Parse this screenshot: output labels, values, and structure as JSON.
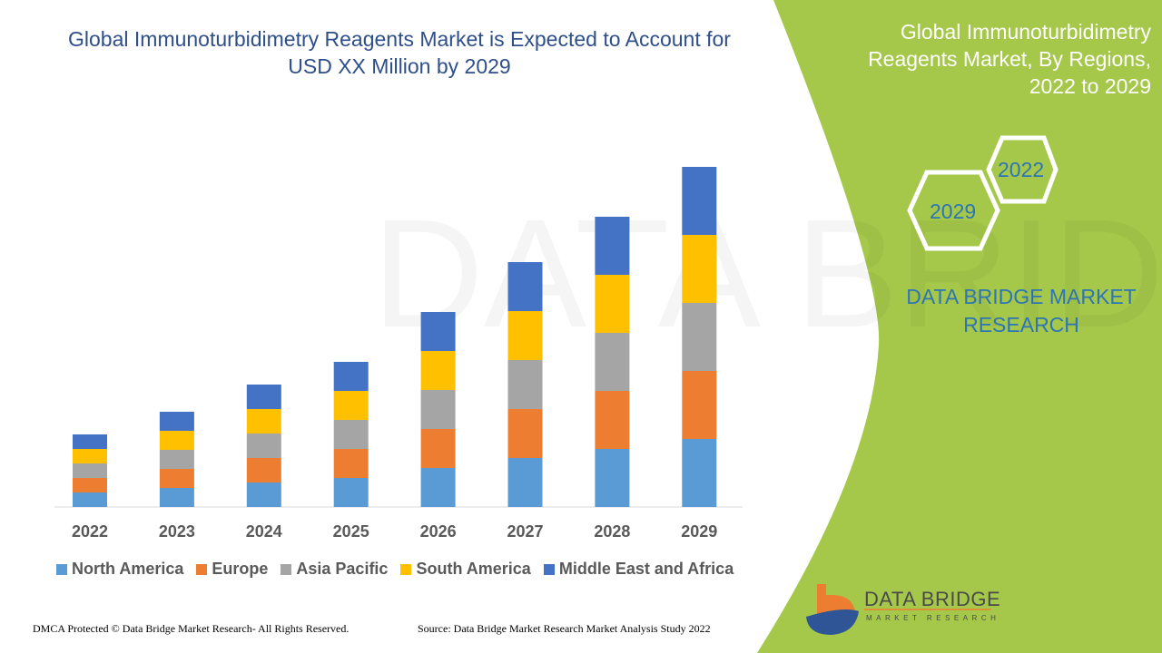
{
  "title": "Global Immunoturbidimetry Reagents Market is Expected to Account for USD XX Million by 2029",
  "side_panel": {
    "title": "Global Immunoturbidimetry Reagents Market, By Regions, 2022 to 2029",
    "hex_labels": [
      "2022",
      "2029"
    ],
    "brand": "DATA BRIDGE MARKET RESEARCH",
    "panel_color": "#a5c84a"
  },
  "logo": {
    "name": "DATA BRIDGE",
    "tagline": "MARKET RESEARCH"
  },
  "footer": {
    "left": "DMCA Protected © Data Bridge Market Research- All Rights Reserved.",
    "right": "Source: Data Bridge Market Research Market Analysis Study 2022"
  },
  "chart_data": {
    "type": "bar",
    "stacked": true,
    "title": "Global Immunoturbidimetry Reagents Market is Expected to Account for USD XX Million by 2029",
    "xlabel": "",
    "ylabel": "",
    "y_axis_visible": false,
    "grid": false,
    "legend_position": "bottom",
    "categories": [
      "2022",
      "2023",
      "2024",
      "2025",
      "2026",
      "2027",
      "2028",
      "2029"
    ],
    "series": [
      {
        "name": "North America",
        "color": "#5b9bd5",
        "values": [
          1.6,
          2.1,
          2.7,
          3.2,
          4.3,
          5.4,
          6.4,
          7.5
        ]
      },
      {
        "name": "Europe",
        "color": "#ed7d31",
        "values": [
          1.6,
          2.1,
          2.7,
          3.2,
          4.3,
          5.4,
          6.4,
          7.5
        ]
      },
      {
        "name": "Asia Pacific",
        "color": "#a5a5a5",
        "values": [
          1.6,
          2.1,
          2.7,
          3.2,
          4.3,
          5.4,
          6.4,
          7.5
        ]
      },
      {
        "name": "South America",
        "color": "#ffc000",
        "values": [
          1.6,
          2.1,
          2.7,
          3.2,
          4.3,
          5.4,
          6.4,
          7.5
        ]
      },
      {
        "name": "Middle East and Africa",
        "color": "#4472c4",
        "values": [
          1.6,
          2.1,
          2.7,
          3.2,
          4.3,
          5.4,
          6.4,
          7.5
        ]
      }
    ]
  }
}
